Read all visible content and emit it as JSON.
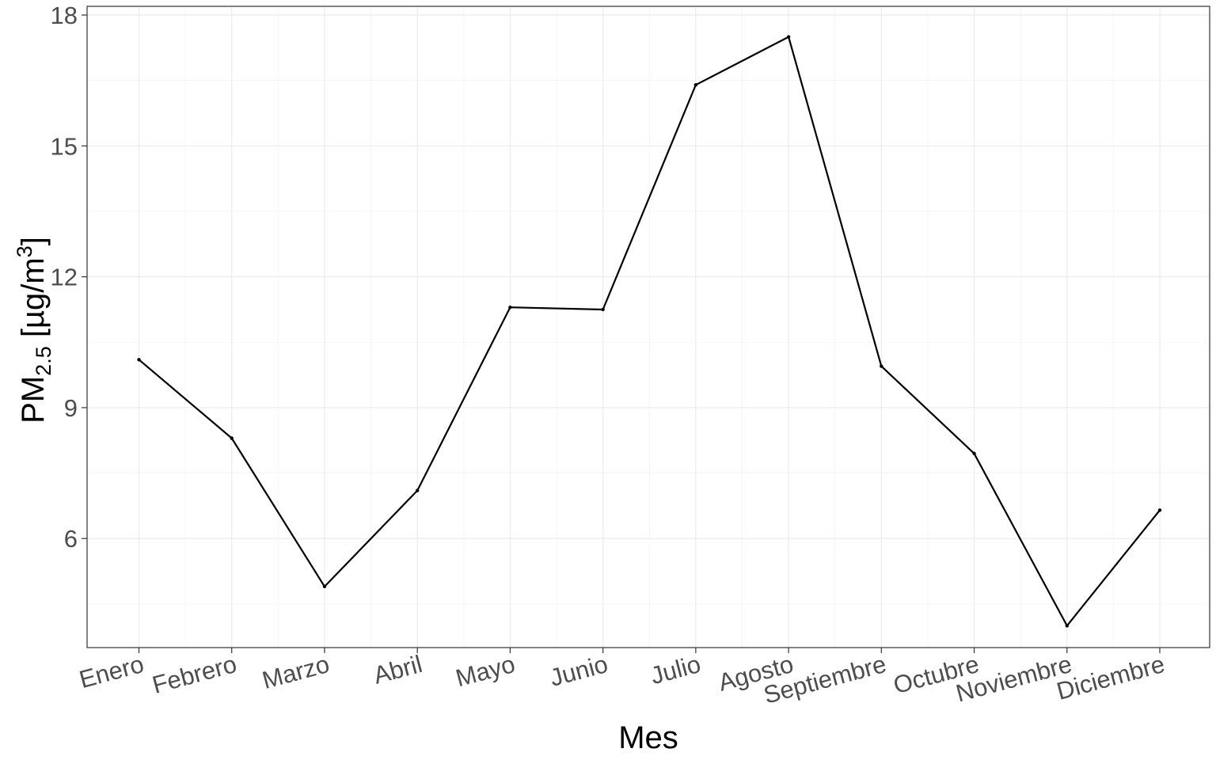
{
  "chart_data": {
    "type": "line",
    "title": "",
    "xlabel": "Mes",
    "ylabel": {
      "main": "PM",
      "subscript": "2.5",
      "unit_open": " [µg/m",
      "superscript": "3",
      "unit_close": "]"
    },
    "categories": [
      "Enero",
      "Febrero",
      "Marzo",
      "Abril",
      "Mayo",
      "Junio",
      "Julio",
      "Agosto",
      "Septiembre",
      "Octubre",
      "Noviembre",
      "Diciembre"
    ],
    "series": [
      {
        "values": [
          10.1,
          8.3,
          4.9,
          7.1,
          11.3,
          11.25,
          16.4,
          17.5,
          9.95,
          7.95,
          4.0,
          6.65
        ]
      }
    ],
    "yticks": [
      6,
      9,
      12,
      15,
      18
    ],
    "ylim": [
      3.5,
      18.2
    ],
    "grid": true,
    "legend": "none",
    "colors": {
      "line": "#000000",
      "grid": "#ebebeb",
      "border": "#333333",
      "tick_label": "#4d4d4d"
    }
  }
}
